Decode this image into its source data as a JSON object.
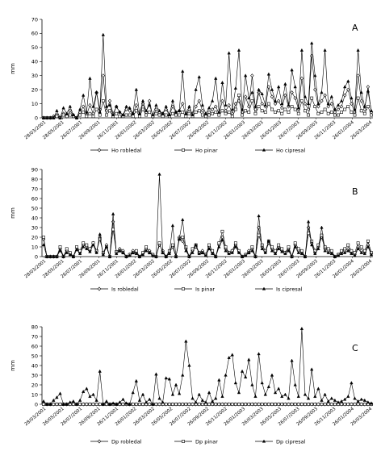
{
  "chart_data": [
    {
      "type": "line",
      "panel_label": "A",
      "ylabel": "mm",
      "ylim": [
        0,
        70
      ],
      "yticks": [
        0,
        10,
        20,
        30,
        40,
        50,
        60,
        70
      ],
      "x_tick_labels": [
        "28/03/2001",
        "28/05/2001",
        "28/07/2001",
        "28/09/2001",
        "28/11/2001",
        "28/01/2002",
        "28/03/2002",
        "28/05/2002",
        "28/07/2002",
        "28/09/2002",
        "28/11/2002",
        "28/01/2003",
        "28/03/2003",
        "28/05/2003",
        "28/07/2003",
        "28/09/2003",
        "28/11/2003",
        "28/01/2004",
        "28/03/2004"
      ],
      "x_tick_labels_shown": [
        "28/03/2001",
        "28/05/2001",
        "26/07/2001",
        "26/09/2001",
        "26/11/2001",
        "26/01/2002",
        "26/03/2002",
        "26/05/2002",
        "26/07/2002",
        "26/09/2002",
        "26/11/2002",
        "26/01/2003",
        "26/03/2003",
        "26/05/2003",
        "26/07/2003",
        "26/09/2003",
        "26/11/2003",
        "26/01/2004",
        "26/03/2004"
      ],
      "legend": [
        "Ho robledal",
        "Ho pinar",
        "Ho cipresal"
      ],
      "series": [
        {
          "name": "Ho robledal",
          "marker": "diamond",
          "values": [
            0,
            0,
            0,
            1,
            2,
            0,
            3,
            1,
            5,
            2,
            0,
            4,
            8,
            2,
            9,
            3,
            18,
            6,
            30,
            5,
            12,
            3,
            8,
            4,
            2,
            6,
            5,
            3,
            9,
            2,
            10,
            4,
            12,
            1,
            6,
            4,
            3,
            6,
            2,
            8,
            4,
            5,
            10,
            2,
            6,
            3,
            8,
            12,
            5,
            2,
            4,
            6,
            8,
            3,
            12,
            5,
            9,
            3,
            10,
            12,
            4,
            15,
            8,
            30,
            6,
            18,
            10,
            8,
            22,
            15,
            10,
            12,
            7,
            16,
            8,
            18,
            14,
            6,
            28,
            10,
            6,
            44,
            20,
            8,
            12,
            16,
            8,
            10,
            4,
            6,
            8,
            16,
            20,
            10,
            4,
            30,
            12,
            6,
            22,
            4
          ]
        },
        {
          "name": "Ho pinar",
          "marker": "square",
          "values": [
            0,
            0,
            0,
            0,
            1,
            0,
            2,
            1,
            2,
            1,
            0,
            2,
            4,
            1,
            3,
            1,
            6,
            2,
            12,
            2,
            5,
            1,
            3,
            1,
            1,
            2,
            2,
            1,
            5,
            1,
            6,
            2,
            4,
            1,
            3,
            2,
            1,
            2,
            1,
            3,
            2,
            2,
            4,
            1,
            3,
            1,
            4,
            5,
            2,
            1,
            2,
            3,
            4,
            2,
            5,
            3,
            4,
            1,
            6,
            16,
            2,
            5,
            4,
            12,
            3,
            8,
            5,
            4,
            10,
            6,
            4,
            5,
            3,
            6,
            4,
            8,
            6,
            3,
            12,
            5,
            2,
            14,
            8,
            3,
            4,
            6,
            3,
            4,
            2,
            2,
            4,
            6,
            8,
            4,
            2,
            14,
            5,
            3,
            8,
            2
          ]
        },
        {
          "name": "Ho cipresal",
          "marker": "triangle",
          "values": [
            0,
            0,
            0,
            0,
            5,
            0,
            7,
            3,
            8,
            2,
            0,
            6,
            16,
            4,
            28,
            8,
            18,
            4,
            59,
            8,
            9,
            2,
            8,
            4,
            2,
            8,
            7,
            3,
            20,
            3,
            12,
            5,
            9,
            2,
            9,
            5,
            3,
            8,
            2,
            12,
            4,
            5,
            33,
            3,
            8,
            2,
            20,
            29,
            9,
            3,
            7,
            12,
            28,
            4,
            25,
            9,
            46,
            6,
            21,
            48,
            6,
            30,
            14,
            18,
            8,
            20,
            17,
            9,
            31,
            20,
            12,
            22,
            10,
            24,
            9,
            34,
            22,
            7,
            48,
            15,
            10,
            53,
            30,
            10,
            18,
            48,
            10,
            15,
            6,
            9,
            12,
            22,
            26,
            14,
            6,
            48,
            18,
            8,
            19,
            5
          ]
        }
      ]
    },
    {
      "type": "line",
      "panel_label": "B",
      "ylabel": "mm",
      "ylim": [
        0,
        90
      ],
      "yticks": [
        0,
        10,
        20,
        30,
        40,
        50,
        60,
        70,
        80,
        90
      ],
      "x_tick_labels": [
        "28/03/2001",
        "28/05/2001",
        "28/07/2001",
        "28/09/2001",
        "28/11/2001",
        "28/01/2002",
        "28/03/2002",
        "28/05/2002",
        "28/07/2002",
        "28/09/2002",
        "28/11/2002",
        "28/01/2003",
        "28/03/2003",
        "28/05/2003",
        "28/07/2003",
        "28/09/2003",
        "28/11/2003",
        "28/01/2004",
        "28/03/2004"
      ],
      "x_tick_labels_shown": [
        "28/03/2001",
        "28/05/2001",
        "26/07/2001",
        "26/09/2001",
        "26/11/2001",
        "26/01/2002",
        "26/03/2002",
        "26/05/2002",
        "26/07/2002",
        "26/09/2002",
        "26/11/2002",
        "26/01/2003",
        "26/03/2003",
        "26/05/2003",
        "26/07/2003",
        "26/09/2003",
        "26/11/2003",
        "26/01/2004",
        "26/03/2004"
      ],
      "legend": [
        "Is robledal",
        "Is pinar",
        "Is cipresal"
      ],
      "series": [
        {
          "name": "Is robledal",
          "marker": "diamond",
          "values": [
            18,
            0,
            0,
            0,
            0,
            8,
            0,
            6,
            3,
            0,
            9,
            4,
            12,
            10,
            6,
            14,
            5,
            20,
            3,
            12,
            0,
            36,
            4,
            8,
            6,
            0,
            2,
            6,
            4,
            0,
            3,
            8,
            6,
            2,
            0,
            12,
            6,
            0,
            4,
            10,
            0,
            20,
            16,
            8,
            0,
            6,
            10,
            4,
            6,
            2,
            10,
            4,
            0,
            12,
            20,
            8,
            4,
            6,
            12,
            5,
            0,
            2,
            6,
            8,
            0,
            30,
            10,
            5,
            14,
            8,
            4,
            10,
            6,
            4,
            8,
            0,
            12,
            6,
            4,
            0,
            30,
            14,
            4,
            10,
            20,
            8,
            6,
            4,
            0,
            2,
            4,
            6,
            8,
            4,
            2,
            10,
            6,
            4,
            12,
            3
          ]
        },
        {
          "name": "Is pinar",
          "marker": "square",
          "values": [
            20,
            0,
            0,
            0,
            0,
            10,
            0,
            8,
            4,
            0,
            10,
            6,
            14,
            12,
            8,
            14,
            6,
            18,
            4,
            10,
            0,
            28,
            5,
            6,
            4,
            0,
            2,
            4,
            6,
            0,
            4,
            10,
            4,
            2,
            0,
            14,
            4,
            0,
            6,
            12,
            0,
            18,
            20,
            10,
            0,
            8,
            12,
            4,
            4,
            2,
            12,
            6,
            0,
            14,
            26,
            10,
            4,
            6,
            14,
            6,
            0,
            2,
            4,
            10,
            0,
            22,
            12,
            6,
            16,
            10,
            6,
            12,
            8,
            4,
            10,
            0,
            14,
            8,
            6,
            0,
            24,
            16,
            6,
            12,
            22,
            10,
            8,
            6,
            0,
            2,
            6,
            8,
            12,
            6,
            4,
            14,
            10,
            6,
            16,
            4
          ]
        },
        {
          "name": "Is cipresal",
          "marker": "triangle",
          "values": [
            12,
            0,
            0,
            0,
            0,
            6,
            0,
            4,
            2,
            0,
            7,
            3,
            10,
            8,
            5,
            12,
            4,
            23,
            2,
            10,
            0,
            44,
            3,
            6,
            4,
            0,
            1,
            4,
            3,
            0,
            2,
            6,
            4,
            1,
            0,
            85,
            4,
            0,
            3,
            32,
            0,
            18,
            38,
            6,
            0,
            4,
            12,
            3,
            4,
            1,
            8,
            3,
            0,
            10,
            17,
            6,
            3,
            4,
            10,
            4,
            0,
            1,
            4,
            6,
            0,
            42,
            8,
            4,
            16,
            6,
            3,
            8,
            5,
            3,
            6,
            0,
            10,
            4,
            3,
            0,
            36,
            12,
            3,
            8,
            30,
            6,
            4,
            3,
            0,
            1,
            3,
            4,
            6,
            3,
            1,
            8,
            4,
            3,
            10,
            2
          ]
        }
      ]
    },
    {
      "type": "line",
      "panel_label": "C",
      "ylabel": "mm",
      "ylim": [
        0,
        80
      ],
      "yticks": [
        0,
        10,
        20,
        30,
        40,
        50,
        60,
        70,
        80
      ],
      "x_tick_labels": [
        "28/03/2001",
        "28/05/2001",
        "28/07/2001",
        "28/09/2001",
        "28/11/2001",
        "28/01/2002",
        "28/03/2002",
        "28/05/2002",
        "28/07/2002",
        "28/09/2002",
        "28/11/2002",
        "28/01/2003",
        "28/03/2003",
        "28/05/2003",
        "28/07/2003",
        "28/09/2003",
        "28/11/2003",
        "28/01/2004",
        "28/03/2004"
      ],
      "x_tick_labels_shown": [
        "28/03/2001",
        "26/05/2001",
        "26/07/2001",
        "26/09/2001",
        "26/11/2001",
        "26/01/2002",
        "26/03/2002",
        "26/05/2002",
        "26/07/2002",
        "26/09/2002",
        "26/11/2002",
        "26/01/2003",
        "26/03/2003",
        "26/05/2003",
        "26/07/2003",
        "26/09/2003",
        "26/11/2003",
        "26/01/2004",
        "26/03/2004"
      ],
      "legend": [
        "Dp robledal",
        "Dp pinar",
        "Dp cipresal"
      ],
      "series": [
        {
          "name": "Dp robledal",
          "marker": "diamond",
          "values": [
            0,
            0,
            0,
            0,
            0,
            0,
            0,
            0,
            0,
            0,
            0,
            0,
            0,
            0,
            0,
            0,
            0,
            0,
            0,
            0,
            0,
            0,
            0,
            0,
            0,
            0,
            0,
            0,
            0,
            0,
            0,
            0,
            0,
            0,
            0,
            0,
            0,
            0,
            0,
            0,
            0,
            0,
            0,
            0,
            0,
            0,
            0,
            0,
            0,
            0,
            0,
            0,
            0,
            0,
            0,
            0,
            0,
            0,
            0,
            0,
            0,
            0,
            0,
            0,
            0,
            0,
            0,
            0,
            0,
            0,
            0,
            0,
            0,
            0,
            0,
            0,
            0,
            0,
            0,
            0,
            0,
            0,
            0,
            0,
            0,
            0,
            0,
            0,
            0,
            0,
            0,
            0,
            0,
            0,
            0,
            0,
            0,
            0,
            0,
            0
          ]
        },
        {
          "name": "Dp pinar",
          "marker": "square",
          "values": [
            0,
            0,
            0,
            0,
            0,
            0,
            0,
            0,
            0,
            0,
            0,
            0,
            0,
            0,
            0,
            0,
            0,
            0,
            0,
            0,
            0,
            0,
            0,
            0,
            0,
            0,
            0,
            0,
            0,
            0,
            0,
            0,
            0,
            0,
            0,
            0,
            0,
            0,
            0,
            0,
            0,
            0,
            0,
            0,
            0,
            0,
            0,
            0,
            0,
            0,
            0,
            0,
            0,
            0,
            0,
            0,
            0,
            0,
            0,
            0,
            0,
            0,
            0,
            0,
            0,
            0,
            0,
            0,
            0,
            0,
            0,
            0,
            0,
            0,
            0,
            0,
            0,
            0,
            0,
            0,
            0,
            0,
            0,
            0,
            0,
            0,
            0,
            0,
            0,
            0,
            0,
            0,
            0,
            0,
            0,
            0,
            0,
            0,
            0,
            0
          ]
        },
        {
          "name": "Dp cipresal",
          "marker": "triangle",
          "values": [
            3,
            0,
            0,
            4,
            7,
            11,
            0,
            0,
            2,
            3,
            0,
            4,
            13,
            16,
            8,
            10,
            4,
            34,
            0,
            3,
            0,
            1,
            0,
            2,
            5,
            1,
            0,
            12,
            24,
            4,
            10,
            2,
            5,
            0,
            31,
            6,
            2,
            27,
            26,
            10,
            20,
            11,
            30,
            65,
            40,
            6,
            2,
            10,
            4,
            2,
            12,
            3,
            6,
            25,
            8,
            30,
            48,
            51,
            22,
            12,
            34,
            28,
            46,
            20,
            8,
            52,
            22,
            10,
            18,
            30,
            12,
            16,
            8,
            10,
            6,
            45,
            20,
            8,
            78,
            10,
            6,
            36,
            8,
            16,
            4,
            10,
            3,
            6,
            4,
            2,
            3,
            5,
            8,
            22,
            6,
            3,
            5,
            4,
            2,
            1
          ]
        }
      ]
    }
  ]
}
